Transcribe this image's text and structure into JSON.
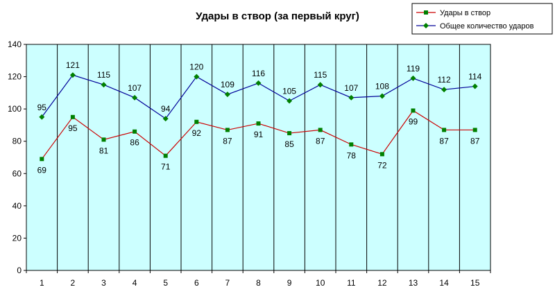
{
  "chart_data": {
    "type": "line",
    "title": "Удары в створ (за первый круг)",
    "xlabel": "",
    "ylabel": "",
    "categories": [
      "1",
      "2",
      "3",
      "4",
      "5",
      "6",
      "7",
      "8",
      "9",
      "10",
      "11",
      "12",
      "13",
      "14",
      "15"
    ],
    "ylim": [
      0,
      140
    ],
    "yticks": [
      0,
      20,
      40,
      60,
      80,
      100,
      120,
      140
    ],
    "grid": "vertical",
    "legend_position": "top-right",
    "plot_background": "#ccffff",
    "series": [
      {
        "name": "Удары в створ",
        "color": "#cc0000",
        "marker": "square",
        "marker_color": "#008000",
        "values": [
          69,
          95,
          81,
          86,
          71,
          92,
          87,
          91,
          85,
          87,
          78,
          72,
          99,
          87,
          87
        ],
        "label_position": "below"
      },
      {
        "name": "Общее количество ударов",
        "color": "#000099",
        "marker": "diamond",
        "marker_color": "#008000",
        "values": [
          95,
          121,
          115,
          107,
          94,
          120,
          109,
          116,
          105,
          115,
          107,
          108,
          119,
          112,
          114
        ],
        "label_position": "above"
      }
    ]
  }
}
